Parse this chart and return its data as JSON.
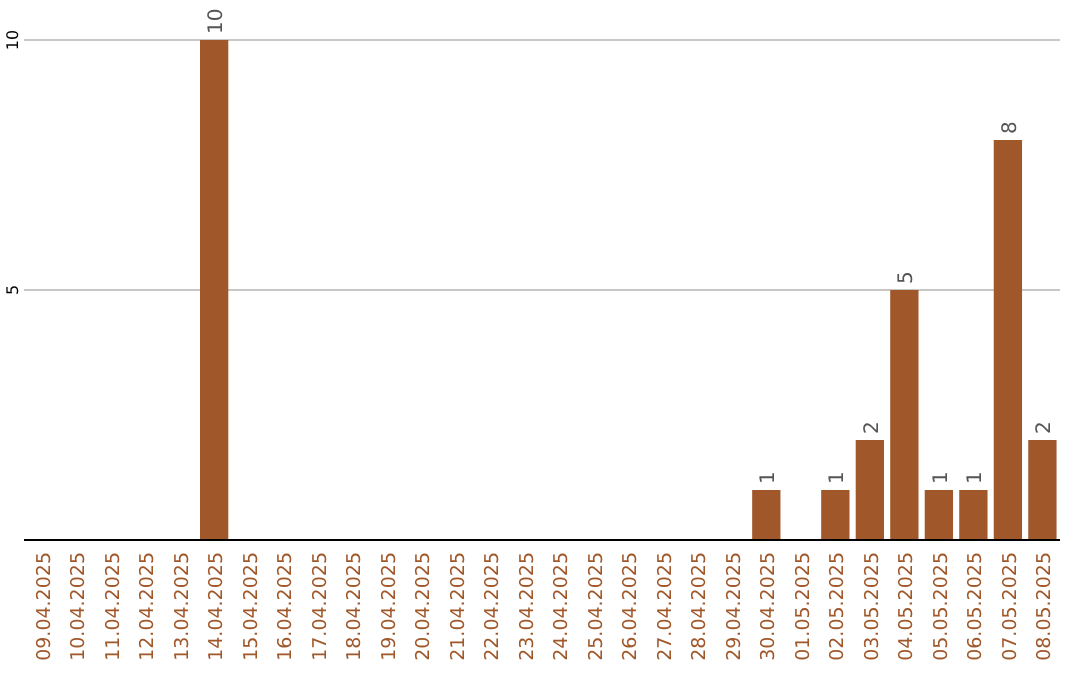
{
  "chart_data": {
    "type": "bar",
    "categories": [
      "09.04.2025",
      "10.04.2025",
      "11.04.2025",
      "12.04.2025",
      "13.04.2025",
      "14.04.2025",
      "15.04.2025",
      "16.04.2025",
      "17.04.2025",
      "18.04.2025",
      "19.04.2025",
      "20.04.2025",
      "21.04.2025",
      "22.04.2025",
      "23.04.2025",
      "24.04.2025",
      "25.04.2025",
      "26.04.2025",
      "27.04.2025",
      "28.04.2025",
      "29.04.2025",
      "30.04.2025",
      "01.05.2025",
      "02.05.2025",
      "03.05.2025",
      "04.05.2025",
      "05.05.2025",
      "06.05.2025",
      "07.05.2025",
      "08.05.2025"
    ],
    "values": [
      0,
      0,
      0,
      0,
      0,
      10,
      0,
      0,
      0,
      0,
      0,
      0,
      0,
      0,
      0,
      0,
      0,
      0,
      0,
      0,
      0,
      1,
      0,
      1,
      2,
      5,
      1,
      1,
      8,
      2
    ],
    "value_labels": [
      null,
      null,
      null,
      null,
      null,
      "10",
      null,
      null,
      null,
      null,
      null,
      null,
      null,
      null,
      null,
      null,
      null,
      null,
      null,
      null,
      null,
      "1",
      null,
      "1",
      "2",
      "5",
      "1",
      "1",
      "8",
      "2"
    ],
    "color": "#a0582a",
    "ylim": [
      0,
      10
    ],
    "yticks": [
      5,
      10
    ],
    "grid": "y"
  }
}
